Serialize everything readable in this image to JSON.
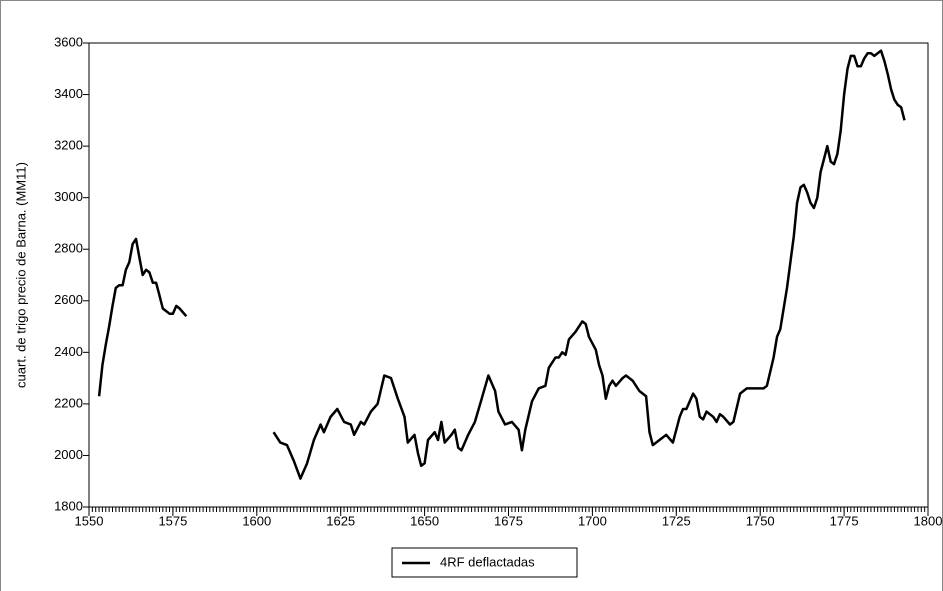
{
  "chart_data": {
    "type": "line",
    "y_label": "cuart. de trigo precio de Barna. (MM11)",
    "x": [
      1553,
      1554,
      1555,
      1556,
      1557,
      1558,
      1559,
      1560,
      1561,
      1562,
      1563,
      1564,
      1565,
      1566,
      1567,
      1568,
      1569,
      1570,
      1571,
      1572,
      1573,
      1574,
      1575,
      1576,
      1577,
      1579,
      1592,
      1605,
      1607,
      1609,
      1611,
      1613,
      1615,
      1617,
      1619,
      1620,
      1622,
      1624,
      1626,
      1628,
      1629,
      1631,
      1632,
      1634,
      1636,
      1638,
      1640,
      1642,
      1644,
      1645,
      1647,
      1648,
      1649,
      1650,
      1651,
      1653,
      1654,
      1655,
      1656,
      1658,
      1659,
      1660,
      1661,
      1663,
      1665,
      1667,
      1669,
      1671,
      1672,
      1674,
      1676,
      1678,
      1679,
      1680,
      1682,
      1684,
      1686,
      1687,
      1689,
      1690,
      1691,
      1692,
      1693,
      1695,
      1697,
      1698,
      1699,
      1701,
      1702,
      1703,
      1704,
      1705,
      1706,
      1707,
      1709,
      1710,
      1712,
      1714,
      1716,
      1717,
      1718,
      1720,
      1722,
      1724,
      1726,
      1727,
      1728,
      1730,
      1731,
      1732,
      1733,
      1734,
      1736,
      1737,
      1738,
      1739,
      1741,
      1742,
      1744,
      1746,
      1748,
      1751,
      1752,
      1754,
      1755,
      1756,
      1758,
      1760,
      1761,
      1762,
      1763,
      1764,
      1765,
      1766,
      1767,
      1768,
      1769,
      1770,
      1771,
      1772,
      1773,
      1774,
      1775,
      1776,
      1777,
      1778,
      1779,
      1780,
      1781,
      1782,
      1783,
      1784,
      1785,
      1786,
      1787,
      1788,
      1789,
      1790,
      1791,
      1792,
      1793
    ],
    "series": [
      {
        "name": "4RF deflactadas",
        "color": "#000000",
        "values": [
          2230,
          2350,
          2430,
          2500,
          2580,
          2650,
          2660,
          2660,
          2720,
          2750,
          2820,
          2840,
          2770,
          2700,
          2720,
          2710,
          2670,
          2670,
          2620,
          2570,
          2560,
          2550,
          2550,
          2580,
          2570,
          2540,
          null,
          2090,
          2050,
          2040,
          1980,
          1910,
          1970,
          2060,
          2120,
          2090,
          2150,
          2180,
          2130,
          2120,
          2080,
          2130,
          2120,
          2170,
          2200,
          2310,
          2300,
          2220,
          2150,
          2050,
          2080,
          2010,
          1960,
          1970,
          2060,
          2090,
          2060,
          2130,
          2050,
          2080,
          2100,
          2030,
          2020,
          2080,
          2130,
          2220,
          2310,
          2250,
          2170,
          2120,
          2130,
          2100,
          2020,
          2100,
          2210,
          2260,
          2270,
          2340,
          2380,
          2380,
          2400,
          2390,
          2450,
          2480,
          2520,
          2510,
          2460,
          2410,
          2350,
          2310,
          2220,
          2270,
          2290,
          2270,
          2300,
          2310,
          2290,
          2250,
          2230,
          2090,
          2040,
          2060,
          2080,
          2050,
          2150,
          2180,
          2180,
          2240,
          2220,
          2150,
          2140,
          2170,
          2150,
          2130,
          2160,
          2150,
          2120,
          2130,
          2240,
          2260,
          2260,
          2260,
          2270,
          2380,
          2460,
          2490,
          2650,
          2850,
          2980,
          3040,
          3050,
          3020,
          2980,
          2960,
          3000,
          3100,
          3150,
          3200,
          3140,
          3130,
          3170,
          3260,
          3400,
          3500,
          3550,
          3550,
          3510,
          3510,
          3540,
          3560,
          3560,
          3550,
          3560,
          3570,
          3530,
          3480,
          3420,
          3380,
          3360,
          3350,
          3300
        ]
      }
    ],
    "xlim": [
      1550,
      1800
    ],
    "xticks": [
      1550,
      1575,
      1600,
      1625,
      1650,
      1675,
      1700,
      1725,
      1750,
      1775,
      1800
    ],
    "ylim": [
      1800,
      3600
    ],
    "yticks": [
      1800,
      2000,
      2200,
      2400,
      2600,
      2800,
      3000,
      3200,
      3400,
      3600
    ],
    "legend": "bottom"
  }
}
